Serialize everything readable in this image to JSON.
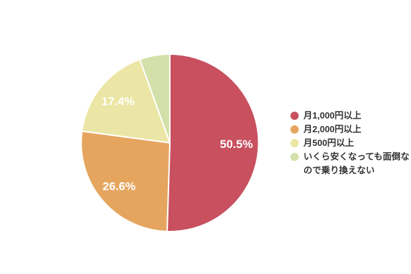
{
  "chart_data": {
    "type": "pie",
    "title": "",
    "start_angle_deg": -90,
    "direction": "clockwise",
    "legend_position": "right",
    "label_radius_ratio": 0.75,
    "slices": [
      {
        "label": "月1,000円以上",
        "value": 50.5,
        "pct_label": "50.5%",
        "label_visible": true,
        "color": "#c8505f"
      },
      {
        "label": "月2,000円以上",
        "value": 26.6,
        "pct_label": "26.6%",
        "label_visible": true,
        "color": "#e6a55e"
      },
      {
        "label": "月500円以上",
        "value": 17.4,
        "pct_label": "17.4%",
        "label_visible": true,
        "color": "#ebe6a5"
      },
      {
        "label": "いくら安くなっても面倒なので乗り換えない",
        "value": 5.5,
        "pct_label": "",
        "label_visible": false,
        "color": "#d4e0aa"
      }
    ]
  },
  "colors": {
    "background": "#ffffff",
    "slice_border": "#ffffff",
    "slice_label_text": "#ffffff",
    "legend_text": "#333333"
  }
}
